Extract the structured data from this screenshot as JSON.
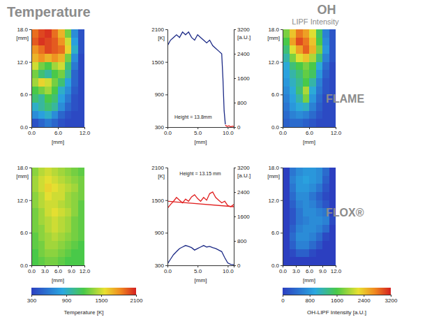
{
  "chart_data": [
    {
      "type": "heatmap",
      "title": "Temperature",
      "x": [
        0.75,
        2.25,
        3.75,
        5.25,
        6.75,
        8.25,
        9.75,
        11.25
      ],
      "y": [
        0.75,
        2.25,
        3.75,
        5.25,
        6.75,
        8.25,
        9.75,
        11.25,
        12.75,
        14.25,
        15.75,
        17.25
      ],
      "z": [
        [
          400,
          500,
          600,
          500,
          400,
          350,
          350,
          350
        ],
        [
          700,
          800,
          900,
          700,
          500,
          400,
          350,
          350
        ],
        [
          900,
          1000,
          1100,
          1000,
          700,
          500,
          400,
          350
        ],
        [
          1100,
          1000,
          1200,
          1100,
          800,
          600,
          400,
          350
        ],
        [
          1200,
          1300,
          1400,
          1200,
          900,
          700,
          450,
          350
        ],
        [
          1400,
          1600,
          1500,
          1300,
          1100,
          800,
          500,
          350
        ],
        [
          1300,
          1100,
          1000,
          1200,
          1300,
          1000,
          500,
          350
        ],
        [
          1500,
          1300,
          1200,
          1400,
          1500,
          1100,
          600,
          350
        ],
        [
          1700,
          1800,
          1700,
          1800,
          1700,
          1300,
          700,
          350
        ],
        [
          1800,
          1900,
          2000,
          1950,
          1900,
          1600,
          900,
          400
        ],
        [
          1950,
          2050,
          2000,
          1950,
          1800,
          1500,
          800,
          400
        ],
        [
          1900,
          2000,
          2050,
          1900,
          1700,
          1300,
          700,
          400
        ]
      ],
      "zlim": [
        300,
        2100
      ],
      "xlim": [
        0,
        12
      ],
      "ylim": [
        0,
        18
      ],
      "xticks": [
        {
          "value": 0,
          "label": "0.0"
        },
        {
          "value": 6,
          "label": "6.0"
        },
        {
          "value": 12,
          "label": "12.0"
        }
      ],
      "yticks": [
        {
          "value": 0,
          "label": "0.0"
        },
        {
          "value": 6,
          "label": "6.0"
        },
        {
          "value": 12,
          "label": "12.0"
        },
        {
          "value": 18,
          "label": "18.0"
        }
      ],
      "xlabel": "[mm]",
      "ylabel": "[mm]"
    },
    {
      "type": "line",
      "series": [
        {
          "color": "#1c2a86",
          "x": [
            0,
            0.5,
            1,
            1.5,
            2,
            2.5,
            3,
            3.5,
            4,
            4.5,
            5,
            5.5,
            6,
            6.5,
            7,
            7.5,
            8,
            8.5,
            9,
            9.2,
            9.4,
            9.6
          ],
          "values": [
            1800,
            1900,
            1950,
            2000,
            1950,
            2050,
            2000,
            2050,
            1950,
            1900,
            2000,
            1950,
            1900,
            1850,
            1900,
            1800,
            1750,
            1700,
            1650,
            1200,
            600,
            350
          ]
        },
        {
          "color": "#e02020",
          "axis": "y2",
          "x": [
            9.6,
            9.9,
            10.2,
            10.5,
            10.8,
            11
          ],
          "values": [
            60,
            20,
            40,
            10,
            30,
            20
          ]
        }
      ],
      "xlim": [
        0,
        11
      ],
      "ylim": [
        300,
        2100
      ],
      "y2lim": [
        0,
        3200
      ],
      "xticks": [
        {
          "value": 0,
          "label": "0.0"
        },
        {
          "value": 5,
          "label": "5.0"
        },
        {
          "value": 10,
          "label": "10.0"
        }
      ],
      "yticks": [
        300,
        900,
        1500,
        2100
      ],
      "y2ticks": [
        0,
        800,
        1600,
        2400,
        3200
      ],
      "xlabel": "[mm]",
      "ylabel": "[K]",
      "y2label": "[a.U.]",
      "annotations": [
        "Height = 13.8mm"
      ]
    },
    {
      "type": "heatmap",
      "title": "OH",
      "subtitle": "LIPF Intensity",
      "x": [
        0.75,
        2.25,
        3.75,
        5.25,
        6.75,
        8.25,
        9.75,
        11.25
      ],
      "y": [
        0.75,
        2.25,
        3.75,
        5.25,
        6.75,
        8.25,
        9.75,
        11.25,
        12.75,
        14.25,
        15.75,
        17.25
      ],
      "z": [
        [
          300,
          400,
          400,
          300,
          200,
          100,
          100,
          100
        ],
        [
          400,
          600,
          700,
          600,
          400,
          200,
          100,
          100
        ],
        [
          500,
          800,
          1000,
          1100,
          600,
          300,
          100,
          100
        ],
        [
          600,
          900,
          1200,
          1800,
          800,
          400,
          100,
          100
        ],
        [
          700,
          1000,
          1400,
          2000,
          1000,
          500,
          200,
          100
        ],
        [
          800,
          1100,
          1300,
          1600,
          1200,
          600,
          200,
          100
        ],
        [
          900,
          1200,
          1400,
          1700,
          1500,
          800,
          300,
          100
        ],
        [
          1000,
          1400,
          1600,
          1800,
          1600,
          1000,
          400,
          100
        ],
        [
          1200,
          1800,
          2200,
          2400,
          2000,
          1400,
          600,
          200
        ],
        [
          1400,
          2200,
          2600,
          2900,
          2500,
          1800,
          800,
          200
        ],
        [
          1600,
          2600,
          3000,
          2800,
          2400,
          1600,
          700,
          200
        ],
        [
          1800,
          2400,
          2800,
          2600,
          2200,
          1500,
          600,
          200
        ]
      ],
      "zlim": [
        0,
        3200
      ],
      "xlim": [
        0,
        12
      ],
      "ylim": [
        0,
        18
      ],
      "xticks": [
        {
          "value": 0,
          "label": "0.0"
        },
        {
          "value": 6,
          "label": "6.0"
        },
        {
          "value": 12,
          "label": "12.0"
        }
      ],
      "yticks": [
        {
          "value": 0,
          "label": "0.0"
        },
        {
          "value": 6,
          "label": "6.0"
        },
        {
          "value": 12,
          "label": "12.0"
        },
        {
          "value": 18,
          "label": "18.0"
        }
      ],
      "xlabel": "[mm]",
      "ylabel": "[mm]",
      "annotations": [
        "FLAME"
      ]
    },
    {
      "type": "heatmap",
      "x": [
        0.75,
        2.25,
        3.75,
        5.25,
        6.75,
        8.25,
        9.75,
        11.25
      ],
      "y": [
        0.75,
        2.25,
        3.75,
        5.25,
        6.75,
        8.25,
        9.75,
        11.25,
        12.75,
        14.25,
        15.75,
        17.25
      ],
      "z": [
        [
          1200,
          1250,
          1300,
          1300,
          1250,
          1200,
          1200,
          1200
        ],
        [
          1200,
          1300,
          1350,
          1350,
          1300,
          1250,
          1200,
          1200
        ],
        [
          1250,
          1300,
          1400,
          1400,
          1350,
          1300,
          1250,
          1200
        ],
        [
          1250,
          1350,
          1400,
          1450,
          1400,
          1350,
          1300,
          1250
        ],
        [
          1300,
          1350,
          1450,
          1500,
          1450,
          1400,
          1300,
          1250
        ],
        [
          1300,
          1400,
          1450,
          1500,
          1450,
          1400,
          1300,
          1250
        ],
        [
          1300,
          1400,
          1500,
          1550,
          1500,
          1450,
          1350,
          1250
        ],
        [
          1350,
          1450,
          1500,
          1500,
          1450,
          1400,
          1350,
          1250
        ],
        [
          1350,
          1450,
          1550,
          1500,
          1500,
          1400,
          1350,
          1300
        ],
        [
          1400,
          1500,
          1600,
          1550,
          1500,
          1450,
          1400,
          1300
        ],
        [
          1400,
          1500,
          1550,
          1500,
          1450,
          1400,
          1350,
          1300
        ],
        [
          1350,
          1450,
          1500,
          1450,
          1400,
          1350,
          1300,
          1250
        ]
      ],
      "xlim": [
        0,
        12
      ],
      "ylim": [
        0,
        18
      ],
      "xticks": [
        {
          "value": 0,
          "label": "0.0"
        },
        {
          "value": 3,
          "label": "3.0"
        },
        {
          "value": 6,
          "label": "6.0"
        },
        {
          "value": 9,
          "label": "9.0"
        },
        {
          "value": 12,
          "label": "12.0"
        }
      ],
      "yticks": [
        {
          "value": 0,
          "label": "0.0"
        },
        {
          "value": 6,
          "label": "6.0"
        },
        {
          "value": 12,
          "label": "12.0"
        },
        {
          "value": 18,
          "label": "18.0"
        }
      ],
      "xlabel": "[mm]",
      "ylabel": "[mm]",
      "colorbar": {
        "range": [
          300,
          2100
        ],
        "ticks": [
          300,
          900,
          1500,
          2100
        ],
        "label": "Temperature [K]"
      }
    },
    {
      "type": "line",
      "series": [
        {
          "color": "#e02020",
          "x": [
            0,
            0.5,
            1,
            1.5,
            2,
            2.5,
            3,
            3.5,
            4,
            4.5,
            5,
            5.5,
            6,
            6.5,
            7,
            7.5,
            8,
            8.5,
            9,
            9.5,
            10,
            10.5,
            11
          ],
          "values": [
            1350,
            1420,
            1480,
            1550,
            1500,
            1450,
            1520,
            1480,
            1560,
            1600,
            1530,
            1480,
            1550,
            1500,
            1620,
            1650,
            1550,
            1500,
            1450,
            1480,
            1400,
            1380,
            1420
          ]
        },
        {
          "color": "#e02020",
          "x": [
            0,
            11
          ],
          "values": [
            1480,
            1380
          ]
        },
        {
          "color": "#1c2a86",
          "axis": "y2",
          "x": [
            0,
            0.5,
            1,
            1.5,
            2,
            2.5,
            3,
            3.5,
            4,
            4.5,
            5,
            5.5,
            6,
            6.5,
            7,
            7.5,
            8,
            8.5,
            9,
            9.5,
            10,
            10.5,
            11
          ],
          "values": [
            50,
            200,
            350,
            450,
            550,
            600,
            650,
            620,
            580,
            500,
            550,
            600,
            650,
            600,
            620,
            580,
            550,
            500,
            450,
            250,
            80,
            30,
            20
          ]
        }
      ],
      "xlim": [
        0,
        11
      ],
      "ylim": [
        300,
        2100
      ],
      "y2lim": [
        0,
        3200
      ],
      "xticks": [
        {
          "value": 0,
          "label": "0.0"
        },
        {
          "value": 5,
          "label": "5.0"
        },
        {
          "value": 10,
          "label": "10.0"
        }
      ],
      "yticks": [
        300,
        900,
        1500,
        2100
      ],
      "y2ticks": [
        0,
        800,
        1600,
        2400,
        3200
      ],
      "xlabel": "[mm]",
      "ylabel": "[K]",
      "y2label": "[a.U.]",
      "annotations": [
        "Height = 13.15 mm"
      ]
    },
    {
      "type": "heatmap",
      "x": [
        0.75,
        2.25,
        3.75,
        5.25,
        6.75,
        8.25,
        9.75,
        11.25
      ],
      "y": [
        0.75,
        2.25,
        3.75,
        5.25,
        6.75,
        8.25,
        9.75,
        11.25,
        12.75,
        14.25,
        15.75,
        17.25
      ],
      "z": [
        [
          0,
          0,
          0,
          0,
          0,
          0,
          0,
          0
        ],
        [
          0,
          100,
          300,
          300,
          100,
          0,
          0,
          0
        ],
        [
          0,
          300,
          600,
          600,
          400,
          200,
          0,
          0
        ],
        [
          0,
          400,
          700,
          700,
          600,
          400,
          100,
          0
        ],
        [
          0,
          300,
          600,
          700,
          700,
          600,
          400,
          0
        ],
        [
          0,
          200,
          500,
          600,
          700,
          700,
          600,
          100
        ],
        [
          0,
          200,
          500,
          700,
          700,
          600,
          500,
          0
        ],
        [
          0,
          300,
          600,
          700,
          600,
          400,
          200,
          0
        ],
        [
          0,
          400,
          700,
          700,
          500,
          300,
          100,
          0
        ],
        [
          0,
          500,
          800,
          800,
          700,
          500,
          200,
          0
        ],
        [
          0,
          600,
          800,
          900,
          800,
          700,
          300,
          0
        ],
        [
          0,
          500,
          700,
          800,
          800,
          700,
          400,
          0
        ]
      ],
      "xlim": [
        0,
        12
      ],
      "ylim": [
        0,
        18
      ],
      "xticks": [
        {
          "value": 0,
          "label": "0.0"
        },
        {
          "value": 3,
          "label": "3.0"
        },
        {
          "value": 6,
          "label": "6.0"
        },
        {
          "value": 9,
          "label": "9.0"
        },
        {
          "value": 12,
          "label": "12.0"
        }
      ],
      "yticks": [
        {
          "value": 0,
          "label": "0.0"
        },
        {
          "value": 6,
          "label": "6.0"
        },
        {
          "value": 12,
          "label": "12.0"
        },
        {
          "value": 18,
          "label": "18.0"
        }
      ],
      "xlabel": "[mm]",
      "ylabel": "[mm]",
      "annotations": [
        "FLOX®"
      ],
      "colorbar": {
        "range": [
          0,
          3200
        ],
        "ticks": [
          0,
          800,
          1600,
          2400,
          3200
        ],
        "label": "OH-LIPF Intensity [a.U.]"
      }
    }
  ]
}
